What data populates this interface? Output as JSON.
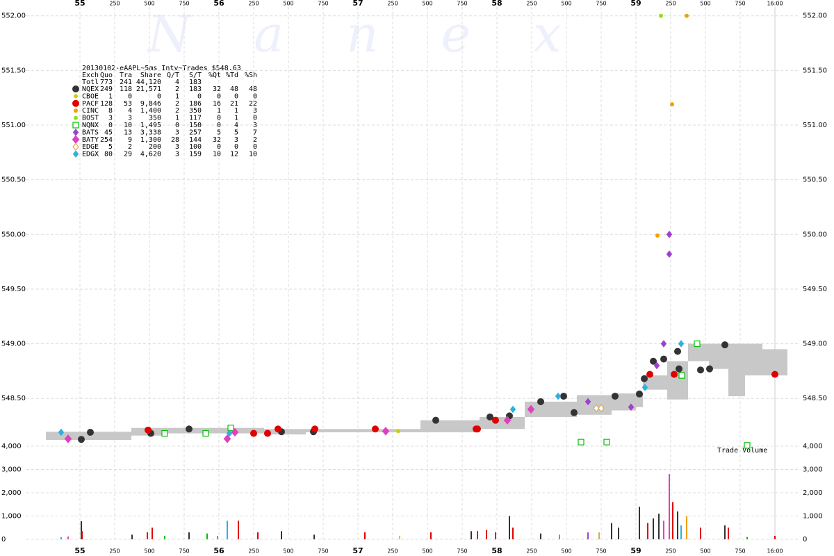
{
  "watermark": "Nanex",
  "legend": {
    "title": "20130102-eAAPL~5ms Intv~Trades $548.63",
    "header": [
      "Exch",
      "Quo",
      "Tra",
      "Share",
      "Q/T",
      "S/T",
      "%Qt",
      "%Td",
      "%Sh"
    ],
    "total": [
      "Totl",
      "773",
      "241",
      "44,120",
      "4",
      "183"
    ]
  },
  "chart_data": [
    {
      "type": "scatter",
      "xlim": [
        54.6,
        60.2
      ],
      "ylim": [
        548.05,
        552.1
      ],
      "xticks": [
        55,
        {
          "value": 55.25,
          "label": "250"
        },
        {
          "value": 55.5,
          "label": "500"
        },
        {
          "value": 55.75,
          "label": "750"
        },
        56,
        {
          "value": 56.25,
          "label": "250"
        },
        {
          "value": 56.5,
          "label": "500"
        },
        {
          "value": 56.75,
          "label": "750"
        },
        57,
        {
          "value": 57.25,
          "label": "250"
        },
        {
          "value": 57.5,
          "label": "500"
        },
        {
          "value": 57.75,
          "label": "750"
        },
        58,
        {
          "value": 58.25,
          "label": "250"
        },
        {
          "value": 58.5,
          "label": "500"
        },
        {
          "value": 58.75,
          "label": "750"
        },
        59,
        {
          "value": 59.25,
          "label": "250"
        },
        {
          "value": 59.5,
          "label": "500"
        },
        {
          "value": 59.75,
          "label": "750"
        },
        {
          "value": 60,
          "label": "16:00"
        }
      ],
      "yticks": [
        {
          "value": 548.5,
          "label": "548.50"
        },
        {
          "value": 549,
          "label": "549.00"
        },
        {
          "value": 549.5,
          "label": "549.50"
        },
        {
          "value": 550,
          "label": "550.00"
        },
        {
          "value": 550.5,
          "label": "550.50"
        },
        {
          "value": 551,
          "label": "551.00"
        },
        {
          "value": 551.5,
          "label": "551.50"
        },
        {
          "value": 552,
          "label": "552.00"
        }
      ],
      "grid": true,
      "nbbo": {
        "color": "#c8c8c8",
        "x": [
          54.755,
          55.37,
          55.625,
          56.325,
          56.625,
          57.45,
          57.875,
          58.2,
          58.575,
          58.825,
          59.0,
          59.05,
          59.225,
          59.375,
          59.525,
          59.665,
          59.785,
          59.91,
          60.09
        ],
        "ask": [
          548.195,
          548.23,
          548.23,
          548.22,
          548.22,
          548.3,
          548.33,
          548.47,
          548.53,
          548.545,
          548.55,
          548.71,
          548.84,
          549.0,
          549.0,
          549.0,
          549.0,
          548.95,
          548.95
        ],
        "bid": [
          548.12,
          548.16,
          548.18,
          548.17,
          548.19,
          548.19,
          548.22,
          548.33,
          548.35,
          548.39,
          548.42,
          548.58,
          548.49,
          548.84,
          548.77,
          548.52,
          548.71,
          548.71,
          548.71
        ]
      },
      "series": [
        {
          "name": "NQEX",
          "color": "#333333",
          "marker": "circle",
          "size": 5,
          "stats": [
            "249",
            "118",
            "21,571",
            "2",
            "183",
            "32",
            "48",
            "48"
          ],
          "x": [
            55.01,
            55.075,
            55.51,
            55.785,
            56.45,
            56.68,
            57.56,
            57.95,
            58.09,
            58.315,
            58.555,
            58.48,
            58.85,
            59.025,
            59.06,
            59.125,
            59.2,
            59.3,
            59.31,
            59.465,
            59.64,
            59.53
          ],
          "values": [
            548.125,
            548.19,
            548.18,
            548.22,
            548.195,
            548.195,
            548.3,
            548.33,
            548.34,
            548.47,
            548.37,
            548.52,
            548.52,
            548.54,
            548.68,
            548.84,
            548.86,
            548.93,
            548.77,
            548.76,
            548.99,
            548.77
          ]
        },
        {
          "name": "CBOE",
          "color": "#c8d400",
          "marker": "circle",
          "size": 3,
          "stats": [
            "1",
            "0",
            "0",
            "1",
            "0",
            "0",
            "0",
            "0"
          ],
          "x": [
            57.29
          ],
          "values": [
            548.2
          ]
        },
        {
          "name": "PACF",
          "color": "#e00000",
          "marker": "circle",
          "size": 5,
          "stats": [
            "128",
            "53",
            "9,846",
            "2",
            "186",
            "16",
            "21",
            "22"
          ],
          "x": [
            55.49,
            56.25,
            56.425,
            56.69,
            57.125,
            57.86,
            57.99,
            59.275,
            59.1,
            60.0,
            56.35,
            57.85
          ],
          "values": [
            548.21,
            548.18,
            548.22,
            548.22,
            548.22,
            548.22,
            548.3,
            548.72,
            548.72,
            548.72,
            548.18,
            548.22
          ]
        },
        {
          "name": "CINC",
          "color": "#f0a000",
          "marker": "circle",
          "size": 3,
          "stats": [
            "8",
            "4",
            "1,400",
            "2",
            "350",
            "1",
            "1",
            "3"
          ],
          "x": [
            59.365,
            59.26,
            59.155
          ],
          "values": [
            552.0,
            551.19,
            549.99
          ]
        },
        {
          "name": "BOST",
          "color": "#90e020",
          "marker": "circle",
          "size": 3,
          "stats": [
            "3",
            "3",
            "350",
            "1",
            "117",
            "0",
            "1",
            "0"
          ],
          "x": [
            59.18
          ],
          "values": [
            552.0
          ]
        },
        {
          "name": "NQNX",
          "color": "#00c000",
          "marker": "square-open",
          "size": 4,
          "stats": [
            "0",
            "10",
            "1,495",
            "0",
            "150",
            "0",
            "4",
            "3"
          ],
          "x": [
            55.61,
            55.905,
            58.605,
            58.79,
            59.44,
            59.33,
            56.085,
            59.8
          ],
          "values": [
            548.18,
            548.18,
            548.1,
            548.1,
            549.0,
            548.71,
            548.23,
            548.07
          ]
        },
        {
          "name": "BATS",
          "color": "#a040d0",
          "marker": "diamond",
          "size": 4,
          "stats": [
            "45",
            "13",
            "3,338",
            "3",
            "257",
            "5",
            "5",
            "7"
          ],
          "x": [
            59.24,
            59.24,
            59.2,
            58.655,
            58.965,
            59.15
          ],
          "values": [
            550.0,
            549.82,
            549.0,
            548.47,
            548.42,
            548.8
          ]
        },
        {
          "name": "BATY",
          "color": "#e040c0",
          "marker": "diamond",
          "size": 5,
          "stats": [
            "254",
            "9",
            "1,300",
            "28",
            "144",
            "32",
            "3",
            "2"
          ],
          "x": [
            54.915,
            56.06,
            56.115,
            58.245,
            58.075,
            57.2
          ],
          "values": [
            548.13,
            548.13,
            548.19,
            548.4,
            548.3,
            548.2
          ]
        },
        {
          "name": "EDGE",
          "color": "#d8a860",
          "marker": "diamond-open",
          "size": 4,
          "stats": [
            "5",
            "2",
            "200",
            "3",
            "100",
            "0",
            "0",
            "0"
          ],
          "x": [
            58.715,
            58.75
          ],
          "values": [
            548.41,
            548.41
          ]
        },
        {
          "name": "EDGX",
          "color": "#30b0e0",
          "marker": "diamond",
          "size": 4,
          "stats": [
            "80",
            "29",
            "4,620",
            "3",
            "159",
            "10",
            "12",
            "10"
          ],
          "x": [
            54.865,
            56.075,
            58.44,
            59.325,
            58.115,
            59.065
          ],
          "values": [
            548.19,
            548.18,
            548.52,
            549.0,
            548.4,
            548.6
          ]
        }
      ]
    },
    {
      "type": "bar",
      "label": "Trade Volume",
      "ylim": [
        0,
        4000
      ],
      "yticks": [
        0,
        {
          "value": 1000,
          "label": "1,000"
        },
        {
          "value": 2000,
          "label": "2,000"
        },
        {
          "value": 3000,
          "label": "3,000"
        },
        {
          "value": 4000,
          "label": "4,000"
        }
      ],
      "x": [
        55.01,
        55.015,
        54.865,
        54.915,
        55.375,
        55.485,
        55.52,
        55.61,
        55.785,
        55.915,
        55.99,
        56.06,
        56.14,
        56.28,
        56.45,
        56.685,
        57.05,
        57.3,
        57.525,
        57.815,
        57.86,
        57.925,
        57.99,
        58.09,
        58.115,
        58.315,
        58.45,
        58.655,
        58.735,
        58.825,
        58.875,
        59.025,
        59.085,
        59.125,
        59.165,
        59.2,
        59.24,
        59.265,
        59.3,
        59.325,
        59.365,
        59.465,
        59.64,
        59.665,
        59.8,
        60.0
      ],
      "values": [
        780,
        350,
        100,
        120,
        200,
        300,
        500,
        150,
        300,
        250,
        150,
        800,
        800,
        300,
        350,
        200,
        300,
        150,
        300,
        350,
        350,
        400,
        300,
        1000,
        500,
        250,
        200,
        300,
        300,
        700,
        500,
        1400,
        700,
        900,
        1100,
        800,
        2800,
        1600,
        1200,
        600,
        1000,
        500,
        600,
        500,
        100,
        150
      ],
      "colors": [
        "#333333",
        "#e00000",
        "#30b0e0",
        "#e040c0",
        "#333333",
        "#e00000",
        "#e00000",
        "#00c000",
        "#333333",
        "#00c000",
        "#30b0e0",
        "#30b0e0",
        "#e00000",
        "#e00000",
        "#333333",
        "#333333",
        "#e00000",
        "#c8d400",
        "#e00000",
        "#333333",
        "#e00000",
        "#e00000",
        "#e00000",
        "#333333",
        "#e00000",
        "#333333",
        "#30b0e0",
        "#a040d0",
        "#d8a860",
        "#333333",
        "#333333",
        "#333333",
        "#e00000",
        "#333333",
        "#333333",
        "#e040c0",
        "#e040c0",
        "#e00000",
        "#333333",
        "#30b0e0",
        "#f0a000",
        "#e00000",
        "#333333",
        "#e00000",
        "#00c000",
        "#e00000"
      ]
    }
  ]
}
